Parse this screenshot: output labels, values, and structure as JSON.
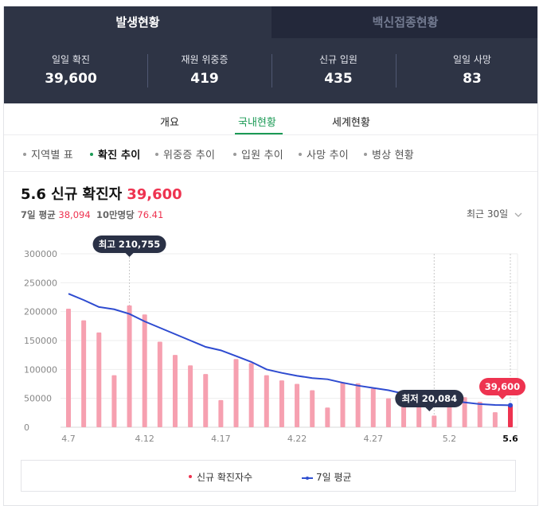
{
  "tabs": {
    "active": "발생현황",
    "inactive": "백신접종현황"
  },
  "stats": [
    {
      "label": "일일 확진",
      "value": "39,600"
    },
    {
      "label": "재원 위중증",
      "value": "419"
    },
    {
      "label": "신규 입원",
      "value": "435"
    },
    {
      "label": "일일 사망",
      "value": "83"
    }
  ],
  "subnav": [
    "개요",
    "국내현황",
    "세계현황"
  ],
  "chips": [
    "지역별 표",
    "확진 추이",
    "위중증 추이",
    "입원 추이",
    "사망 추이",
    "병상 현황"
  ],
  "headline": {
    "date": "5.6 신규 확진자",
    "value": "39,600"
  },
  "subline": {
    "avg_label": "7일 평균",
    "avg_value": "38,094",
    "per_label": "10만명당",
    "per_value": "76.41"
  },
  "range_label": "최근 30일",
  "icons": {
    "range_chevron": "chevron-down-icon"
  },
  "colors": {
    "bar": "#f6a0b0",
    "bar_latest": "#ee3350",
    "avg_line": "#2e4bd0",
    "accent_green": "#1b9a55",
    "header_bg": "#2e3445"
  },
  "chart_data": {
    "type": "bar",
    "x_tick_labels": [
      "4.7",
      "4.12",
      "4.17",
      "4.22",
      "4.27",
      "5.2",
      "5.6"
    ],
    "ylim": [
      0,
      300000
    ],
    "y_tick_labels": [
      "300000",
      "250000",
      "200000",
      "150000",
      "100000",
      "50000",
      "0"
    ],
    "series": [
      {
        "name": "신규 확진자수",
        "values": [
          205000,
          185000,
          164000,
          90000,
          210755,
          195000,
          148000,
          125000,
          107000,
          92000,
          47000,
          118000,
          111000,
          90000,
          81000,
          75000,
          64000,
          34000,
          78000,
          76000,
          67000,
          50000,
          63000,
          51000,
          20084,
          49000,
          52000,
          44000,
          26000,
          39600
        ]
      },
      {
        "name": "7일 평균",
        "values": [
          231000,
          220000,
          208000,
          204000,
          196000,
          183000,
          172000,
          161000,
          150000,
          139000,
          133000,
          123000,
          113000,
          100000,
          94000,
          89000,
          85000,
          83000,
          77000,
          72000,
          68000,
          64000,
          58000,
          53000,
          50000,
          46000,
          43000,
          40000,
          38500,
          38094
        ]
      }
    ],
    "annotations": {
      "max_label": "최고 210,755",
      "min_label": "최저 20,084",
      "last_label": "39,600"
    },
    "legend_position": "bottom"
  }
}
